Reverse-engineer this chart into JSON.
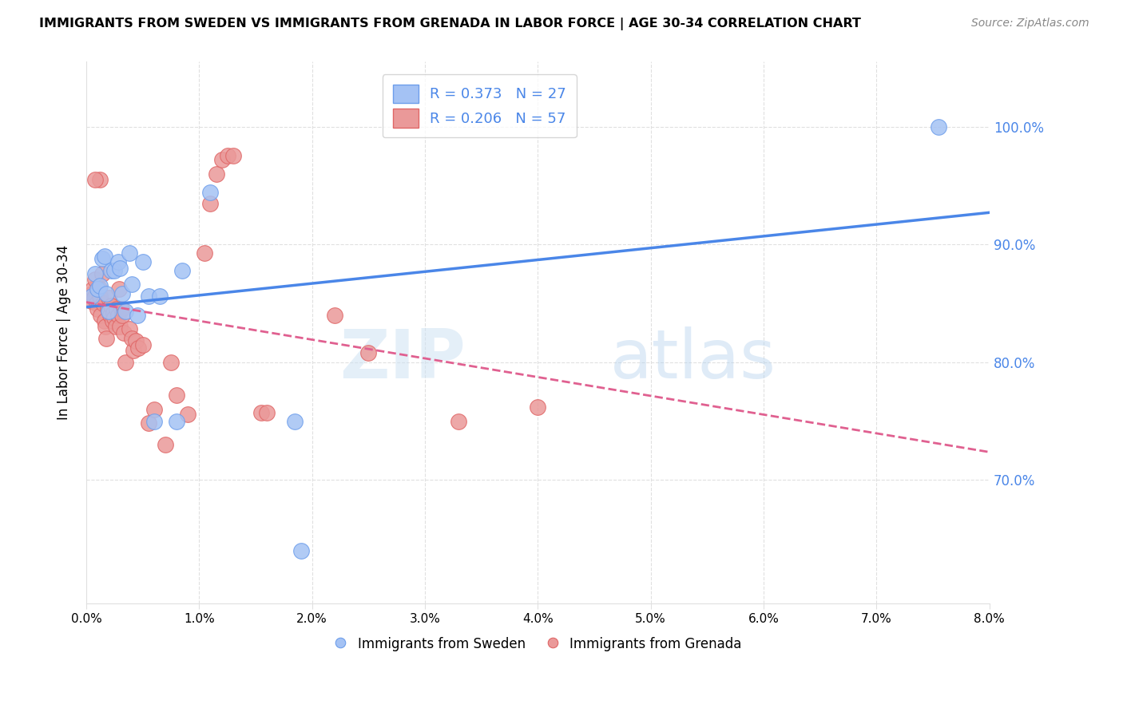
{
  "title": "IMMIGRANTS FROM SWEDEN VS IMMIGRANTS FROM GRENADA IN LABOR FORCE | AGE 30-34 CORRELATION CHART",
  "source": "Source: ZipAtlas.com",
  "ylabel": "In Labor Force | Age 30-34",
  "xlabel_ticks": [
    "0.0%",
    "1.0%",
    "2.0%",
    "3.0%",
    "4.0%",
    "5.0%",
    "6.0%",
    "7.0%",
    "8.0%"
  ],
  "xlabel_vals": [
    0.0,
    1.0,
    2.0,
    3.0,
    4.0,
    5.0,
    6.0,
    7.0,
    8.0
  ],
  "ylabel_ticks_right": [
    "100.0%",
    "90.0%",
    "80.0%",
    "70.0%"
  ],
  "ylabel_vals": [
    1.0,
    0.9,
    0.8,
    0.7
  ],
  "xlim": [
    0.0,
    8.0
  ],
  "ylim": [
    0.595,
    1.055
  ],
  "legend_sweden_r": "R = 0.373",
  "legend_sweden_n": "N = 27",
  "legend_grenada_r": "R = 0.206",
  "legend_grenada_n": "N = 57",
  "sweden_color": "#a4c2f4",
  "grenada_color": "#ea9999",
  "sweden_edge_color": "#6d9eeb",
  "grenada_edge_color": "#e06666",
  "sweden_line_color": "#4a86e8",
  "grenada_line_color": "#e06090",
  "watermark_color": "#cfe2f3",
  "grid_color": "#e0e0e0",
  "right_axis_color": "#4a86e8",
  "sweden_x": [
    0.05,
    0.08,
    0.1,
    0.12,
    0.14,
    0.16,
    0.18,
    0.2,
    0.22,
    0.25,
    0.28,
    0.3,
    0.32,
    0.35,
    0.38,
    0.4,
    0.45,
    0.5,
    0.55,
    0.6,
    0.65,
    0.8,
    0.85,
    1.1,
    1.85,
    1.9,
    7.55
  ],
  "sweden_y": [
    0.856,
    0.875,
    0.862,
    0.865,
    0.888,
    0.89,
    0.858,
    0.843,
    0.878,
    0.878,
    0.885,
    0.88,
    0.858,
    0.843,
    0.893,
    0.866,
    0.84,
    0.885,
    0.856,
    0.75,
    0.856,
    0.75,
    0.878,
    0.944,
    0.75,
    0.64,
    1.0
  ],
  "grenada_x": [
    0.04,
    0.05,
    0.06,
    0.07,
    0.08,
    0.09,
    0.1,
    0.11,
    0.12,
    0.13,
    0.14,
    0.15,
    0.16,
    0.17,
    0.18,
    0.19,
    0.2,
    0.21,
    0.22,
    0.23,
    0.24,
    0.25,
    0.26,
    0.27,
    0.28,
    0.29,
    0.3,
    0.31,
    0.32,
    0.33,
    0.35,
    0.38,
    0.4,
    0.42,
    0.44,
    0.46,
    0.5,
    0.55,
    0.6,
    0.7,
    0.75,
    0.8,
    0.9,
    1.05,
    1.1,
    1.15,
    1.2,
    1.25,
    1.3,
    1.55,
    1.6,
    2.2,
    2.5,
    3.3,
    4.0,
    0.12,
    0.08
  ],
  "grenada_y": [
    0.852,
    0.858,
    0.862,
    0.855,
    0.87,
    0.85,
    0.845,
    0.863,
    0.856,
    0.84,
    0.875,
    0.85,
    0.835,
    0.83,
    0.82,
    0.845,
    0.855,
    0.84,
    0.848,
    0.835,
    0.842,
    0.838,
    0.83,
    0.845,
    0.84,
    0.862,
    0.83,
    0.845,
    0.84,
    0.825,
    0.8,
    0.828,
    0.82,
    0.81,
    0.818,
    0.812,
    0.815,
    0.748,
    0.76,
    0.73,
    0.8,
    0.772,
    0.756,
    0.893,
    0.935,
    0.96,
    0.972,
    0.975,
    0.975,
    0.757,
    0.757,
    0.84,
    0.808,
    0.75,
    0.762,
    0.955,
    0.955
  ]
}
